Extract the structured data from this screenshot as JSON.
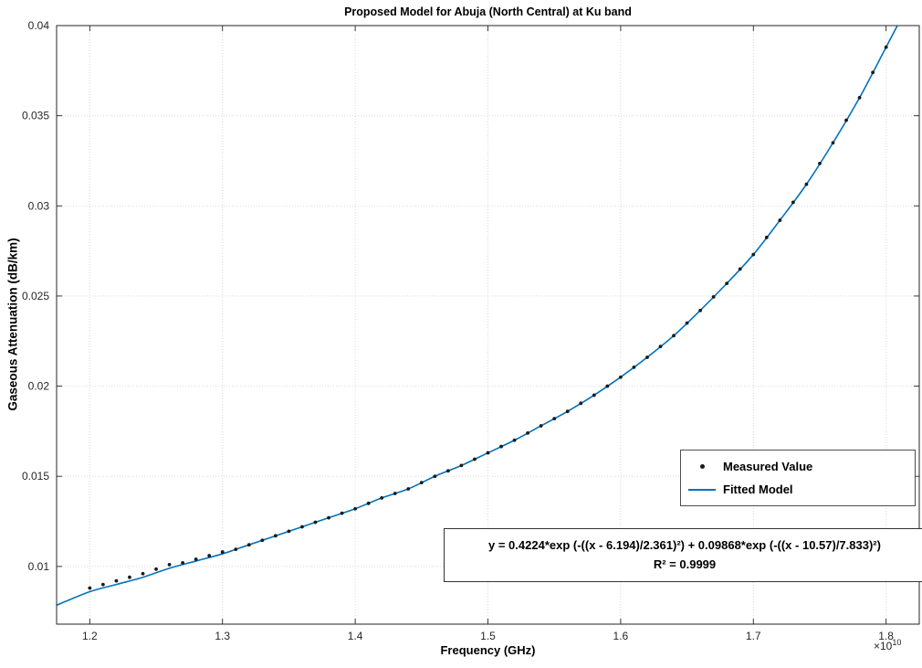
{
  "figure": {
    "title": "Proposed Model for Abuja (North Central) at Ku band",
    "xlabel": "Frequency (GHz)",
    "ylabel": "Gaseous Attenuation (dB/km)",
    "x_exponent_label": "×10",
    "x_exponent_power": "10"
  },
  "legend": {
    "items": [
      {
        "label": "Measured Value",
        "marker": "dot",
        "color": "#1a1a1a"
      },
      {
        "label": "Fitted Model",
        "marker": "line",
        "color": "#0072BD"
      }
    ]
  },
  "annotation": {
    "line1": "y = 0.4224*exp (-((x - 6.194)/2.361)²) + 0.09868*exp (-((x - 10.57)/7.833)²)",
    "line2": "R² = 0.9999"
  },
  "chart_data": {
    "type": "line",
    "title": "Proposed Model for Abuja (North Central) at Ku band",
    "xlabel": "Frequency (GHz)",
    "ylabel": "Gaseous Attenuation (dB/km)",
    "x_axis_multiplier": "1e10",
    "xlim": [
      1.175,
      1.825
    ],
    "ylim": [
      0.0068,
      0.04
    ],
    "x_tick_values": [
      1.2,
      1.3,
      1.4,
      1.5,
      1.6,
      1.7,
      1.8
    ],
    "x_tick_labels": [
      "1.2",
      "1.3",
      "1.4",
      "1.5",
      "1.6",
      "1.7",
      "1.8"
    ],
    "y_tick_values": [
      0.01,
      0.015,
      0.02,
      0.025,
      0.03,
      0.035,
      0.04
    ],
    "y_tick_labels": [
      "0.01",
      "0.015",
      "0.02",
      "0.025",
      "0.03",
      "0.035",
      "0.04"
    ],
    "grid": true,
    "legend_position": "right-center-inside",
    "equation": "y = 0.4224*exp(-((x - 6.194)/2.361)^2) + 0.09868*exp(-((x - 10.57)/7.833)^2)",
    "r_squared": 0.9999,
    "series": [
      {
        "name": "Fitted Model",
        "type": "line",
        "color": "#0072BD",
        "points": [
          [
            1.175,
            0.00785
          ],
          [
            1.2,
            0.0086
          ],
          [
            1.22,
            0.009
          ],
          [
            1.24,
            0.0094
          ],
          [
            1.26,
            0.0099
          ],
          [
            1.28,
            0.0103
          ],
          [
            1.3,
            0.0107
          ],
          [
            1.32,
            0.0112
          ],
          [
            1.34,
            0.0117
          ],
          [
            1.36,
            0.0122
          ],
          [
            1.38,
            0.0127
          ],
          [
            1.4,
            0.0132
          ],
          [
            1.42,
            0.0138
          ],
          [
            1.44,
            0.0143
          ],
          [
            1.46,
            0.015
          ],
          [
            1.48,
            0.0156
          ],
          [
            1.5,
            0.0163
          ],
          [
            1.52,
            0.017
          ],
          [
            1.54,
            0.0178
          ],
          [
            1.56,
            0.0186
          ],
          [
            1.58,
            0.0195
          ],
          [
            1.6,
            0.0205
          ],
          [
            1.62,
            0.0216
          ],
          [
            1.64,
            0.0228
          ],
          [
            1.66,
            0.0242
          ],
          [
            1.68,
            0.0257
          ],
          [
            1.7,
            0.0273
          ],
          [
            1.72,
            0.0292
          ],
          [
            1.74,
            0.0312
          ],
          [
            1.76,
            0.0335
          ],
          [
            1.78,
            0.036
          ],
          [
            1.8,
            0.0388
          ],
          [
            1.817,
            0.0412
          ]
        ]
      },
      {
        "name": "Measured Value",
        "type": "scatter",
        "color": "#1a1a1a",
        "points": [
          [
            1.2,
            0.0088
          ],
          [
            1.21,
            0.009
          ],
          [
            1.22,
            0.0092
          ],
          [
            1.23,
            0.0094
          ],
          [
            1.24,
            0.0096
          ],
          [
            1.25,
            0.00985
          ],
          [
            1.26,
            0.0101
          ],
          [
            1.27,
            0.0102
          ],
          [
            1.28,
            0.0104
          ],
          [
            1.29,
            0.0106
          ],
          [
            1.3,
            0.0108
          ],
          [
            1.31,
            0.01095
          ],
          [
            1.32,
            0.0112
          ],
          [
            1.33,
            0.01145
          ],
          [
            1.34,
            0.0117
          ],
          [
            1.35,
            0.01195
          ],
          [
            1.36,
            0.0122
          ],
          [
            1.37,
            0.01245
          ],
          [
            1.38,
            0.0127
          ],
          [
            1.39,
            0.01295
          ],
          [
            1.4,
            0.0132
          ],
          [
            1.41,
            0.0135
          ],
          [
            1.42,
            0.0138
          ],
          [
            1.43,
            0.01405
          ],
          [
            1.44,
            0.0143
          ],
          [
            1.45,
            0.01465
          ],
          [
            1.46,
            0.015
          ],
          [
            1.47,
            0.0153
          ],
          [
            1.48,
            0.0156
          ],
          [
            1.49,
            0.01595
          ],
          [
            1.5,
            0.0163
          ],
          [
            1.51,
            0.01665
          ],
          [
            1.52,
            0.017
          ],
          [
            1.53,
            0.0174
          ],
          [
            1.54,
            0.0178
          ],
          [
            1.55,
            0.0182
          ],
          [
            1.56,
            0.0186
          ],
          [
            1.57,
            0.01905
          ],
          [
            1.58,
            0.0195
          ],
          [
            1.59,
            0.02
          ],
          [
            1.6,
            0.0205
          ],
          [
            1.61,
            0.02105
          ],
          [
            1.62,
            0.0216
          ],
          [
            1.63,
            0.0222
          ],
          [
            1.64,
            0.0228
          ],
          [
            1.65,
            0.0235
          ],
          [
            1.66,
            0.0242
          ],
          [
            1.67,
            0.02495
          ],
          [
            1.68,
            0.0257
          ],
          [
            1.69,
            0.0265
          ],
          [
            1.7,
            0.0273
          ],
          [
            1.71,
            0.02825
          ],
          [
            1.72,
            0.0292
          ],
          [
            1.73,
            0.0302
          ],
          [
            1.74,
            0.0312
          ],
          [
            1.75,
            0.03235
          ],
          [
            1.76,
            0.0335
          ],
          [
            1.77,
            0.03475
          ],
          [
            1.78,
            0.036
          ],
          [
            1.79,
            0.0374
          ],
          [
            1.8,
            0.0388
          ]
        ]
      }
    ]
  }
}
